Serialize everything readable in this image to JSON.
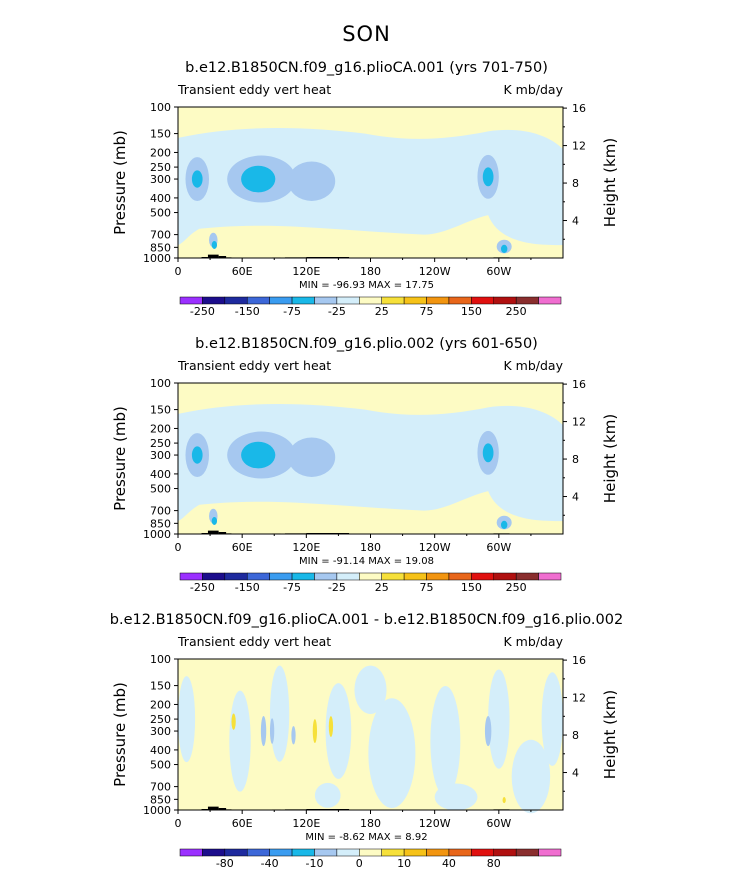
{
  "season_title": "SON",
  "chart_data": [
    {
      "type": "contour",
      "title": "b.e12.B1850CN.f09_g16.plioCA.001 (yrs 701-750)",
      "left_label": "Transient eddy vert heat",
      "right_label": "K mb/day",
      "ylabel": "Pressure (mb)",
      "ylabel_right": "Height (km)",
      "xticks": [
        "0",
        "60E",
        "120E",
        "180",
        "120W",
        "60W"
      ],
      "xtick_values": [
        0,
        60,
        120,
        180,
        240,
        300
      ],
      "xlim": [
        0,
        360
      ],
      "yticks": [
        "100",
        "150",
        "200",
        "250",
        "300",
        "400",
        "500",
        "700",
        "850",
        "1000"
      ],
      "ytick_values": [
        100,
        150,
        200,
        250,
        300,
        400,
        500,
        700,
        850,
        1000
      ],
      "height_ticks": [
        "4",
        "8",
        "12",
        "16"
      ],
      "height_values": [
        4,
        8,
        12,
        16
      ],
      "ylim": [
        1000,
        100
      ],
      "stats": "MIN = -96.93   MAX =  17.75",
      "min": -96.93,
      "max": 17.75,
      "colorbar_labels": [
        "-250",
        "-150",
        "-75",
        "-25",
        "25",
        "75",
        "150",
        "250"
      ],
      "colorbar_colors": [
        "#9b30ff",
        "#1c0d8c",
        "#1e2a9e",
        "#3c67d8",
        "#3a9cf0",
        "#19b8e8",
        "#a6c8f0",
        "#d4eefa",
        "#fdfbc4",
        "#f6e03a",
        "#f6c218",
        "#f29510",
        "#e8661a",
        "#e0100f",
        "#b01010",
        "#8a2e2e",
        "#f06ed0"
      ]
    },
    {
      "type": "contour",
      "title": "b.e12.B1850CN.f09_g16.plio.002 (yrs 601-650)",
      "left_label": "Transient eddy vert heat",
      "right_label": "K mb/day",
      "ylabel": "Pressure (mb)",
      "ylabel_right": "Height (km)",
      "xticks": [
        "0",
        "60E",
        "120E",
        "180",
        "120W",
        "60W"
      ],
      "xtick_values": [
        0,
        60,
        120,
        180,
        240,
        300
      ],
      "xlim": [
        0,
        360
      ],
      "yticks": [
        "100",
        "150",
        "200",
        "250",
        "300",
        "400",
        "500",
        "700",
        "850",
        "1000"
      ],
      "ytick_values": [
        100,
        150,
        200,
        250,
        300,
        400,
        500,
        700,
        850,
        1000
      ],
      "height_ticks": [
        "4",
        "8",
        "12",
        "16"
      ],
      "height_values": [
        4,
        8,
        12,
        16
      ],
      "ylim": [
        1000,
        100
      ],
      "stats": "MIN = -91.14   MAX =  19.08",
      "min": -91.14,
      "max": 19.08,
      "colorbar_labels": [
        "-250",
        "-150",
        "-75",
        "-25",
        "25",
        "75",
        "150",
        "250"
      ],
      "colorbar_colors": [
        "#9b30ff",
        "#1c0d8c",
        "#1e2a9e",
        "#3c67d8",
        "#3a9cf0",
        "#19b8e8",
        "#a6c8f0",
        "#d4eefa",
        "#fdfbc4",
        "#f6e03a",
        "#f6c218",
        "#f29510",
        "#e8661a",
        "#e0100f",
        "#b01010",
        "#8a2e2e",
        "#f06ed0"
      ]
    },
    {
      "type": "contour",
      "title": "b.e12.B1850CN.f09_g16.plioCA.001 - b.e12.B1850CN.f09_g16.plio.002",
      "left_label": "Transient eddy vert heat",
      "right_label": "K mb/day",
      "ylabel": "Pressure (mb)",
      "ylabel_right": "Height (km)",
      "xticks": [
        "0",
        "60E",
        "120E",
        "180",
        "120W",
        "60W"
      ],
      "xtick_values": [
        0,
        60,
        120,
        180,
        240,
        300
      ],
      "xlim": [
        0,
        360
      ],
      "yticks": [
        "100",
        "150",
        "200",
        "250",
        "300",
        "400",
        "500",
        "700",
        "850",
        "1000"
      ],
      "ytick_values": [
        100,
        150,
        200,
        250,
        300,
        400,
        500,
        700,
        850,
        1000
      ],
      "height_ticks": [
        "4",
        "8",
        "12",
        "16"
      ],
      "height_values": [
        4,
        8,
        12,
        16
      ],
      "ylim": [
        1000,
        100
      ],
      "stats": "MIN = -8.62   MAX =  8.92",
      "min": -8.62,
      "max": 8.92,
      "colorbar_labels": [
        "-80",
        "-40",
        "-10",
        "0",
        "10",
        "40",
        "80"
      ],
      "colorbar_colors": [
        "#9b30ff",
        "#1c0d8c",
        "#1e2a9e",
        "#3c67d8",
        "#3a9cf0",
        "#19b8e8",
        "#a6c8f0",
        "#d4eefa",
        "#fdfbc4",
        "#f6e03a",
        "#f6c218",
        "#f29510",
        "#e8661a",
        "#e0100f",
        "#b01010",
        "#8a2e2e",
        "#f06ed0"
      ]
    }
  ]
}
